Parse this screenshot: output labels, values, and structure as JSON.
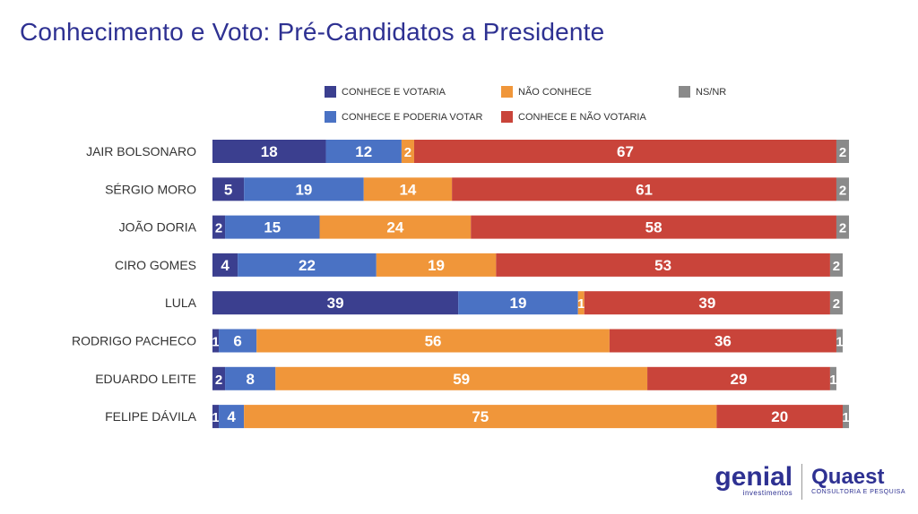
{
  "title": "Conhecimento e Voto: Pré-Candidatos a Presidente",
  "logos": {
    "genial_name": "genial",
    "genial_sub": "investimentos",
    "quaest_name": "Quaest",
    "quaest_sub": "CONSULTORIA E PESQUISA"
  },
  "chart_data": {
    "type": "bar",
    "orientation": "horizontal",
    "stacked": true,
    "unit": "%",
    "categories": [
      "JAIR BOLSONARO",
      "SÉRGIO MORO",
      "JOÃO DORIA",
      "CIRO GOMES",
      "LULA",
      "RODRIGO PACHECO",
      "EDUARDO LEITE",
      "FELIPE DÁVILA"
    ],
    "series": [
      {
        "name": "CONHECE E VOTARIA",
        "color": "#3b3f8f",
        "values": [
          18,
          5,
          2,
          4,
          39,
          1,
          2,
          1
        ]
      },
      {
        "name": "CONHECE E PODERIA VOTAR",
        "color": "#4a72c4",
        "values": [
          12,
          19,
          15,
          22,
          19,
          6,
          8,
          4
        ]
      },
      {
        "name": "NÃO CONHECE",
        "color": "#f0963a",
        "values": [
          2,
          14,
          24,
          19,
          1,
          56,
          59,
          75
        ]
      },
      {
        "name": "CONHECE E NÃO VOTARIA",
        "color": "#c9443a",
        "values": [
          67,
          61,
          58,
          53,
          39,
          36,
          29,
          20
        ]
      },
      {
        "name": "NS/NR",
        "color": "#8a8a8a",
        "values": [
          2,
          2,
          2,
          2,
          2,
          1,
          1,
          1
        ]
      }
    ],
    "legend_position": "top",
    "grid": false,
    "xlim": [
      0,
      101
    ]
  }
}
